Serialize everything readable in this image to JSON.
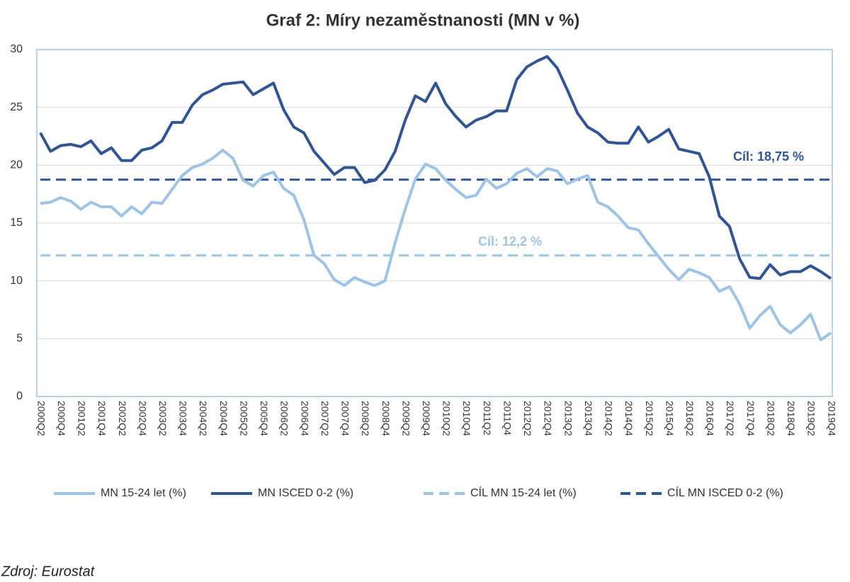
{
  "chart_data": {
    "type": "line",
    "title": "Graf 2: Míry nezaměstnanosti (MN v %)",
    "source": "Zdroj: Eurostat",
    "categories": [
      "2000Q2",
      null,
      "2000Q4",
      null,
      "2001Q2",
      null,
      "2001Q4",
      null,
      "2002Q2",
      null,
      "2002Q4",
      null,
      "2003Q2",
      null,
      "2003Q4",
      null,
      "2004Q2",
      null,
      "2004Q4",
      null,
      "2005Q2",
      null,
      "2005Q4",
      null,
      "2006Q2",
      null,
      "2006Q4",
      null,
      "2007Q2",
      null,
      "2007Q4",
      null,
      "2008Q2",
      null,
      "2008Q4",
      null,
      "2009Q2",
      null,
      "2009Q4",
      null,
      "2010Q2",
      null,
      "2010Q4",
      null,
      "2011Q2",
      null,
      "2011Q4",
      null,
      "2012Q2",
      null,
      "2012Q4",
      null,
      "2013Q2",
      null,
      "2013Q4",
      null,
      "2014Q2",
      null,
      "2014Q4",
      null,
      "2015Q2",
      null,
      "2015Q4",
      null,
      "2016Q2",
      null,
      "2016Q4",
      null,
      "2017Q2",
      null,
      "2017Q4",
      null,
      "2018Q2",
      null,
      "2018Q4",
      null,
      "2019Q2",
      null,
      "2019Q4"
    ],
    "series": [
      {
        "name": "MN 15-24 let (%)",
        "color": "#9dc3e6",
        "dashed": false,
        "values": [
          16.7,
          16.8,
          17.2,
          16.9,
          16.2,
          16.8,
          16.4,
          16.4,
          15.6,
          16.4,
          15.8,
          16.8,
          16.7,
          17.9,
          19.1,
          19.8,
          20.1,
          20.6,
          21.3,
          20.6,
          18.7,
          18.2,
          19.1,
          19.4,
          18.0,
          17.4,
          15.3,
          12.2,
          11.5,
          10.1,
          9.6,
          10.3,
          9.9,
          9.6,
          10.0,
          13.3,
          16.2,
          18.8,
          20.1,
          19.7,
          18.7,
          17.9,
          17.2,
          17.4,
          18.8,
          18.0,
          18.4,
          19.3,
          19.7,
          19.0,
          19.7,
          19.5,
          18.4,
          18.8,
          19.1,
          16.8,
          16.4,
          15.6,
          14.6,
          14.4,
          13.2,
          12.1,
          11.0,
          10.1,
          11.0,
          10.7,
          10.3,
          9.1,
          9.5,
          8.0,
          5.9,
          7.0,
          7.8,
          6.2,
          5.5,
          6.2,
          7.1,
          4.9,
          5.5
        ]
      },
      {
        "name": "MN ISCED 0-2 (%)",
        "color": "#2f5597",
        "dashed": false,
        "values": [
          22.8,
          21.2,
          21.7,
          21.8,
          21.6,
          22.1,
          21.0,
          21.5,
          20.4,
          20.4,
          21.3,
          21.5,
          22.1,
          23.7,
          23.7,
          25.2,
          26.1,
          26.5,
          27.0,
          27.1,
          27.2,
          26.1,
          26.6,
          27.1,
          24.8,
          23.3,
          22.8,
          21.2,
          20.2,
          19.2,
          19.8,
          19.8,
          18.5,
          18.7,
          19.6,
          21.2,
          23.9,
          26.0,
          25.5,
          27.1,
          25.3,
          24.2,
          23.3,
          23.9,
          24.2,
          24.7,
          24.7,
          27.4,
          28.5,
          29.0,
          29.4,
          28.4,
          26.5,
          24.5,
          23.3,
          22.8,
          22.0,
          21.9,
          21.9,
          23.3,
          22.0,
          22.5,
          23.1,
          21.4,
          21.2,
          21.0,
          19.0,
          15.6,
          14.7,
          11.9,
          10.3,
          10.2,
          11.4,
          10.5,
          10.8,
          10.8,
          11.3,
          10.8,
          10.2
        ]
      },
      {
        "name": "CÍL MN 15-24 let (%)",
        "color": "#9dc3e6",
        "dashed": true,
        "values": [
          12.2,
          12.2,
          12.2,
          12.2,
          12.2,
          12.2,
          12.2,
          12.2,
          12.2,
          12.2,
          12.2,
          12.2,
          12.2,
          12.2,
          12.2,
          12.2,
          12.2,
          12.2,
          12.2,
          12.2,
          12.2,
          12.2,
          12.2,
          12.2,
          12.2,
          12.2,
          12.2,
          12.2,
          12.2,
          12.2,
          12.2,
          12.2,
          12.2,
          12.2,
          12.2,
          12.2,
          12.2,
          12.2,
          12.2,
          12.2,
          12.2,
          12.2,
          12.2,
          12.2,
          12.2,
          12.2,
          12.2,
          12.2,
          12.2,
          12.2,
          12.2,
          12.2,
          12.2,
          12.2,
          12.2,
          12.2,
          12.2,
          12.2,
          12.2,
          12.2,
          12.2,
          12.2,
          12.2,
          12.2,
          12.2,
          12.2,
          12.2,
          12.2,
          12.2,
          12.2,
          12.2,
          12.2,
          12.2,
          12.2,
          12.2,
          12.2,
          12.2,
          12.2,
          12.2
        ]
      },
      {
        "name": "CÍL MN ISCED 0-2 (%)",
        "color": "#2f5597",
        "dashed": true,
        "values": [
          18.75,
          18.75,
          18.75,
          18.75,
          18.75,
          18.75,
          18.75,
          18.75,
          18.75,
          18.75,
          18.75,
          18.75,
          18.75,
          18.75,
          18.75,
          18.75,
          18.75,
          18.75,
          18.75,
          18.75,
          18.75,
          18.75,
          18.75,
          18.75,
          18.75,
          18.75,
          18.75,
          18.75,
          18.75,
          18.75,
          18.75,
          18.75,
          18.75,
          18.75,
          18.75,
          18.75,
          18.75,
          18.75,
          18.75,
          18.75,
          18.75,
          18.75,
          18.75,
          18.75,
          18.75,
          18.75,
          18.75,
          18.75,
          18.75,
          18.75,
          18.75,
          18.75,
          18.75,
          18.75,
          18.75,
          18.75,
          18.75,
          18.75,
          18.75,
          18.75,
          18.75,
          18.75,
          18.75,
          18.75,
          18.75,
          18.75,
          18.75,
          18.75,
          18.75,
          18.75,
          18.75,
          18.75,
          18.75,
          18.75,
          18.75,
          18.75,
          18.75,
          18.75,
          18.75
        ]
      }
    ],
    "annotations": [
      {
        "text": "Cíl: 18,75 %",
        "color": "#2f5597"
      },
      {
        "text": "Cíl: 12,2 %",
        "color": "#9dc3e6"
      }
    ],
    "ylim": [
      0,
      30
    ],
    "yticks": [
      0,
      5,
      10,
      15,
      20,
      25,
      30
    ],
    "grid": true,
    "legend": "bottom"
  }
}
